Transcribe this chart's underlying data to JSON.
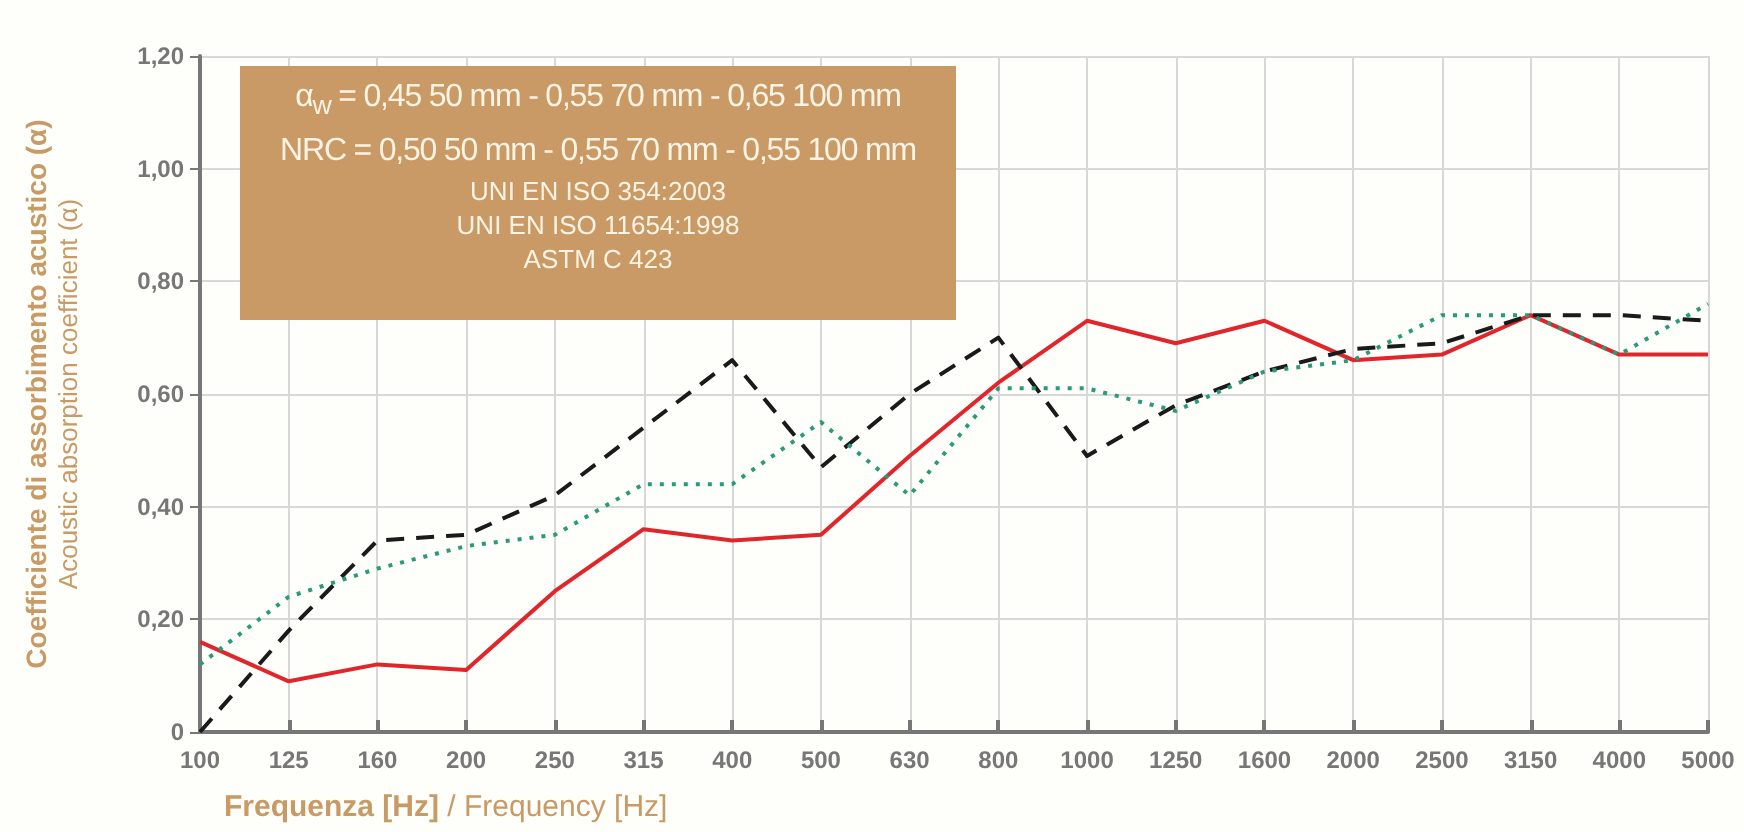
{
  "chart_data": {
    "type": "line",
    "xlabel": "Frequenza [Hz] / Frequency [Hz]",
    "ylabel": "Coefficiente di assorbimento acustico (α)\nAcoustic absorption coefficient (α)",
    "annotations": [
      "α$_{w}$ = 0,45 50 mm - 0,55 70 mm - 0,65 100 mm",
      "NRC = 0,50 50 mm - 0,55 70 mm - 0,55 100 mm",
      "UNI EN ISO 354:2003",
      "UNI EN ISO 11654:1998",
      "ASTM C 423"
    ],
    "categories": [
      "100",
      "125",
      "160",
      "200",
      "250",
      "315",
      "400",
      "500",
      "630",
      "800",
      "1000",
      "1250",
      "1600",
      "2000",
      "2500",
      "3150",
      "4000",
      "5000"
    ],
    "series": [
      {
        "color": "#e0262b",
        "line_style": "solid",
        "values": [
          0.16,
          0.09,
          0.12,
          0.11,
          0.25,
          0.36,
          0.34,
          0.35,
          0.49,
          0.62,
          0.73,
          0.69,
          0.73,
          0.66,
          0.67,
          0.74,
          0.67,
          0.67
        ]
      },
      {
        "color": "#1a1a1a",
        "line_style": "dashed",
        "values": [
          0,
          0.18,
          0.34,
          0.35,
          0.42,
          0.54,
          0.66,
          0.47,
          0.6,
          0.7,
          0.49,
          0.58,
          0.64,
          0.68,
          0.69,
          0.74,
          0.74,
          0.73
        ]
      },
      {
        "color": "#2a9a7a",
        "line_style": "dotted",
        "values": [
          0.12,
          0.24,
          0.29,
          0.33,
          0.35,
          0.44,
          0.44,
          0.55,
          0.42,
          0.61,
          0.61,
          0.57,
          0.64,
          0.66,
          0.74,
          0.74,
          0.67,
          0.76
        ]
      }
    ],
    "ylim": [
      0,
      1.2
    ],
    "yticks": [
      0,
      {
        "value": 0.2,
        "label": "0,20"
      },
      {
        "value": 0.4,
        "label": "0,40"
      },
      {
        "value": 0.6,
        "label": "0,60"
      },
      {
        "value": 0.8,
        "label": "0,80"
      },
      {
        "value": 1.0,
        "label": "1,00"
      },
      {
        "value": 1.2,
        "label": "1,20"
      }
    ],
    "grid": true,
    "marker": "none"
  }
}
